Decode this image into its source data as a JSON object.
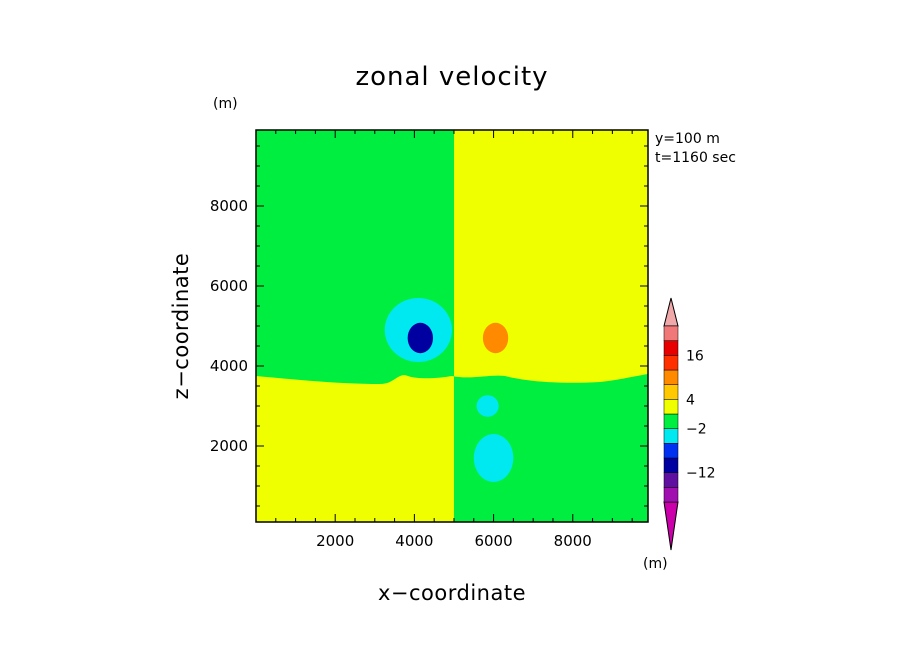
{
  "chart_data": {
    "type": "heatmap",
    "title": "zonal velocity",
    "xlabel": "x−coordinate",
    "ylabel": "z−coordinate",
    "x_unit": "(m)",
    "y_unit": "(m)",
    "annotations": [
      "y=100 m",
      "t=1160 sec"
    ],
    "xlim": [
      0,
      9900
    ],
    "ylim": [
      100,
      9900
    ],
    "x_ticks": [
      2000,
      4000,
      6000,
      8000
    ],
    "y_ticks": [
      2000,
      4000,
      6000,
      8000
    ],
    "x_tick_labels": [
      "2000",
      "4000",
      "6000",
      "8000"
    ],
    "y_tick_labels": [
      "2000",
      "4000",
      "6000",
      "8000"
    ],
    "colorbar": {
      "levels": [
        "<-20",
        "-20",
        "-16",
        "-12",
        "-8",
        "-4",
        "-2",
        "0",
        "4",
        "8",
        "12",
        "16",
        "20",
        ">20"
      ],
      "colors": [
        "#cc00aa",
        "#a010b0",
        "#6010a0",
        "#0000a0",
        "#0030f0",
        "#00e8f0",
        "#00ee40",
        "#f0ff00",
        "#ffc800",
        "#ff8a00",
        "#ff3000",
        "#e80000",
        "#f07878",
        "#f0a8a8"
      ],
      "tick_labels": [
        "16",
        "4",
        "−2",
        "−12"
      ],
      "tick_values": [
        16,
        4,
        -2,
        -12
      ]
    },
    "fields": {
      "background_upper_left": -1,
      "background_upper_right": 1,
      "background_lower_left": 1,
      "background_lower_right": -1,
      "features": [
        {
          "x": 4100,
          "z": 4900,
          "rx": 850,
          "rz": 800,
          "value": -3
        },
        {
          "x": 4150,
          "z": 4700,
          "rx": 320,
          "rz": 380,
          "value": -10
        },
        {
          "x": 6100,
          "z": 4850,
          "rx": 850,
          "rz": 800,
          "value": 3
        },
        {
          "x": 6050,
          "z": 4700,
          "rx": 320,
          "rz": 380,
          "value": 8
        },
        {
          "x": 4050,
          "z": 3000,
          "rx": 280,
          "rz": 270,
          "value": 3
        },
        {
          "x": 5850,
          "z": 3000,
          "rx": 280,
          "rz": 270,
          "value": -3
        },
        {
          "x": 4000,
          "z": 1700,
          "rx": 500,
          "rz": 600,
          "value": 3
        },
        {
          "x": 6000,
          "z": 1700,
          "rx": 500,
          "rz": 600,
          "value": -3
        }
      ]
    }
  }
}
